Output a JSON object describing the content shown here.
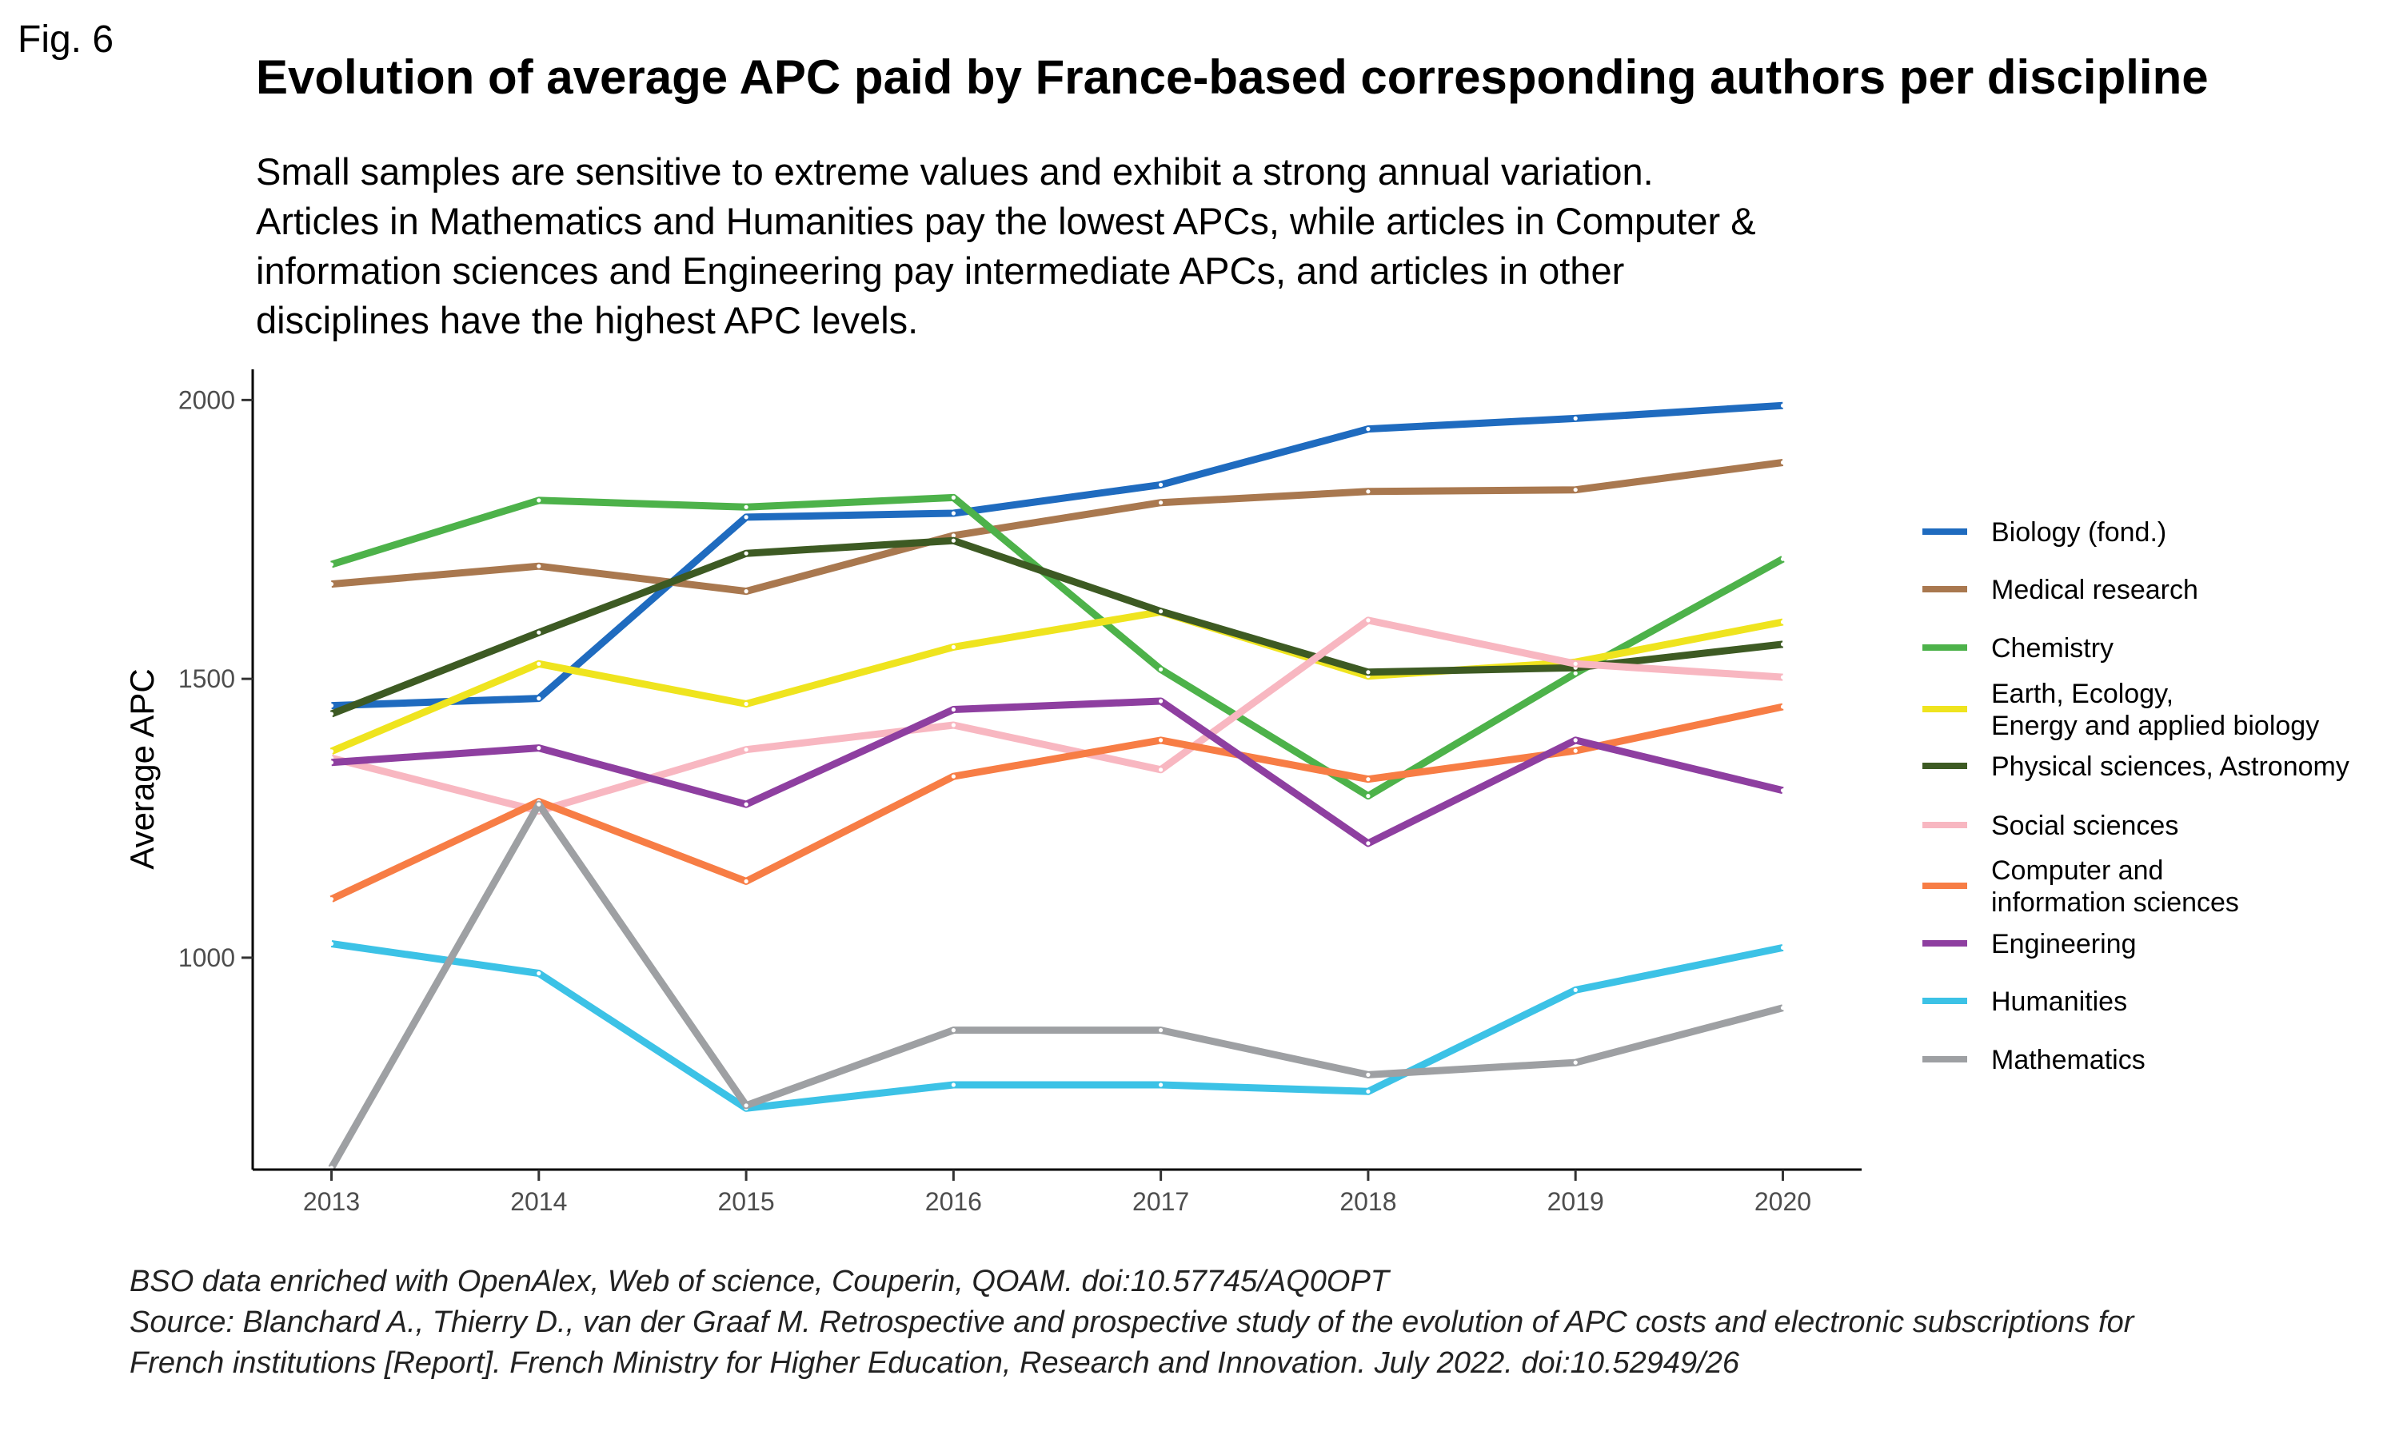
{
  "fig_label": "Fig. 6",
  "chart_data": {
    "type": "line",
    "title": "Evolution of average APC paid by France-based corresponding authors per discipline",
    "subtitle_lines": [
      "Small samples are sensitive to extreme values and exhibit a strong annual variation.",
      "Articles in Mathematics and Humanities pay the lowest APCs, while articles in Computer &",
      "information sciences and Engineering pay intermediate APCs, and articles in other",
      "disciplines have the highest APC levels."
    ],
    "xlabel": "",
    "ylabel": "Average APC",
    "x": [
      2013,
      2014,
      2015,
      2016,
      2017,
      2018,
      2019,
      2020
    ],
    "xlim": [
      2012.62,
      2020.38
    ],
    "ylim": [
      620,
      2055
    ],
    "yticks": [
      1000,
      1500,
      2000
    ],
    "grid": false,
    "legend_position": "right",
    "series": [
      {
        "name": "Biology (fond.)",
        "color": "#1f6bbf",
        "values": [
          1452,
          1465,
          1790,
          1797,
          1848,
          1948,
          1967,
          1990
        ]
      },
      {
        "name": "Medical research",
        "color": "#a9784f",
        "values": [
          1670,
          1702,
          1657,
          1757,
          1816,
          1836,
          1839,
          1888
        ]
      },
      {
        "name": "Chemistry",
        "color": "#4db24a",
        "values": [
          1705,
          1820,
          1808,
          1825,
          1517,
          1290,
          1510,
          1715
        ]
      },
      {
        "name": "Earth, Ecology,\nEnergy and applied biology",
        "color": "#efe41e",
        "values": [
          1370,
          1527,
          1455,
          1557,
          1620,
          1505,
          1530,
          1602
        ]
      },
      {
        "name": "Physical sciences, Astronomy",
        "color": "#3d5a23",
        "values": [
          1437,
          1583,
          1725,
          1748,
          1621,
          1512,
          1520,
          1562
        ]
      },
      {
        "name": "Social sciences",
        "color": "#f8b7c1",
        "values": [
          1358,
          1263,
          1373,
          1417,
          1337,
          1605,
          1527,
          1503
        ]
      },
      {
        "name": "Computer and\n information sciences",
        "color": "#f77d45",
        "values": [
          1105,
          1280,
          1137,
          1325,
          1390,
          1320,
          1371,
          1450
        ]
      },
      {
        "name": "Engineering",
        "color": "#8e3fa0",
        "values": [
          1350,
          1376,
          1275,
          1445,
          1460,
          1205,
          1390,
          1300
        ]
      },
      {
        "name": "Humanities",
        "color": "#3cc2e6",
        "values": [
          1025,
          972,
          730,
          772,
          772,
          760,
          942,
          1018
        ]
      },
      {
        "name": "Mathematics",
        "color": "#9ea0a3",
        "values": [
          623,
          1275,
          735,
          870,
          870,
          790,
          812,
          910
        ]
      }
    ]
  },
  "caption": [
    "BSO data enriched with OpenAlex, Web of science, Couperin, QOAM. doi:10.57745/AQ0OPT",
    "Source: Blanchard A., Thierry D., van der Graaf M. Retrospective and prospective study of the evolution of APC costs and electronic subscriptions for",
    "French institutions [Report]. French Ministry for Higher Education, Research and Innovation. July 2022. doi:10.52949/26"
  ]
}
